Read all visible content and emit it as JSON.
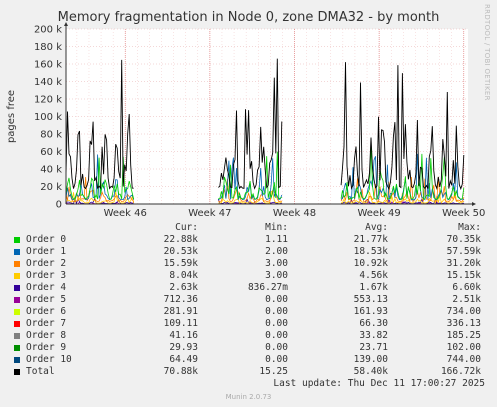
{
  "title": "Memory fragmentation in Node 0, zone DMA32 - by month",
  "side_label": "RRDTOOL / TOBI OETIKER",
  "footer": {
    "last_update": "Last update: Thu Dec 11 17:00:27 2025",
    "munin": "Munin 2.0.73"
  },
  "legend_headers": {
    "cur": "Cur:",
    "min": "Min:",
    "avg": "Avg:",
    "max": "Max:"
  },
  "legend": [
    {
      "name": "Order 0",
      "color": "#00cc00",
      "cur": "22.88k",
      "min": "1.11",
      "avg": "21.77k",
      "max": "70.35k"
    },
    {
      "name": "Order 1",
      "color": "#0066b3",
      "cur": "20.53k",
      "min": "2.00",
      "avg": "18.53k",
      "max": "57.59k"
    },
    {
      "name": "Order 2",
      "color": "#ff8000",
      "cur": "15.59k",
      "min": "3.00",
      "avg": "10.92k",
      "max": "31.20k"
    },
    {
      "name": "Order 3",
      "color": "#ffcc00",
      "cur": "8.04k",
      "min": "3.00",
      "avg": "4.56k",
      "max": "15.15k"
    },
    {
      "name": "Order 4",
      "color": "#330099",
      "cur": "2.63k",
      "min": "836.27m",
      "avg": "1.67k",
      "max": "6.60k"
    },
    {
      "name": "Order 5",
      "color": "#990099",
      "cur": "712.36",
      "min": "0.00",
      "avg": "553.13",
      "max": "2.51k"
    },
    {
      "name": "Order 6",
      "color": "#ccff00",
      "cur": "281.91",
      "min": "0.00",
      "avg": "161.93",
      "max": "734.00"
    },
    {
      "name": "Order 7",
      "color": "#ff0000",
      "cur": "109.11",
      "min": "0.00",
      "avg": "66.30",
      "max": "336.13"
    },
    {
      "name": "Order 8",
      "color": "#808080",
      "cur": "41.16",
      "min": "0.00",
      "avg": "33.82",
      "max": "185.25"
    },
    {
      "name": "Order 9",
      "color": "#008f00",
      "cur": "29.93",
      "min": "0.00",
      "avg": "23.71",
      "max": "102.00"
    },
    {
      "name": "Order 10",
      "color": "#00487d",
      "cur": "64.49",
      "min": "0.00",
      "avg": "139.00",
      "max": "744.00"
    },
    {
      "name": "Total",
      "color": "#000000",
      "cur": "70.88k",
      "min": "15.25",
      "avg": "58.40k",
      "max": "166.72k"
    }
  ],
  "chart_data": {
    "type": "line",
    "title": "Memory fragmentation in Node 0, zone DMA32 - by month",
    "ylabel": "pages free",
    "ylim": [
      0,
      200000
    ],
    "yticks": [
      "0",
      "20 k",
      "40 k",
      "60 k",
      "80 k",
      "100 k",
      "120 k",
      "140 k",
      "160 k",
      "180 k",
      "200 k"
    ],
    "xticks": [
      "Week 46",
      "Week 47",
      "Week 48",
      "Week 49",
      "Week 50"
    ],
    "grid": true,
    "x_range_weeks": [
      45.3,
      50.05
    ],
    "data_segments_weeks": [
      [
        45.3,
        46.1
      ],
      [
        47.1,
        47.85
      ],
      [
        48.55,
        50.0
      ]
    ],
    "series": [
      {
        "name": "Total",
        "color": "#000000",
        "typical": 70000,
        "peak": 166720
      },
      {
        "name": "Order 0",
        "color": "#00cc00",
        "typical": 22000,
        "peak": 70350
      },
      {
        "name": "Order 1",
        "color": "#0066b3",
        "typical": 19000,
        "peak": 57590
      },
      {
        "name": "Order 2",
        "color": "#ff8000",
        "typical": 11000,
        "peak": 31200
      },
      {
        "name": "Order 3",
        "color": "#ffcc00",
        "typical": 4500,
        "peak": 15150
      },
      {
        "name": "Order 4",
        "color": "#330099",
        "typical": 1700,
        "peak": 6600
      },
      {
        "name": "Order 5",
        "color": "#990099",
        "typical": 550,
        "peak": 2510
      }
    ]
  }
}
